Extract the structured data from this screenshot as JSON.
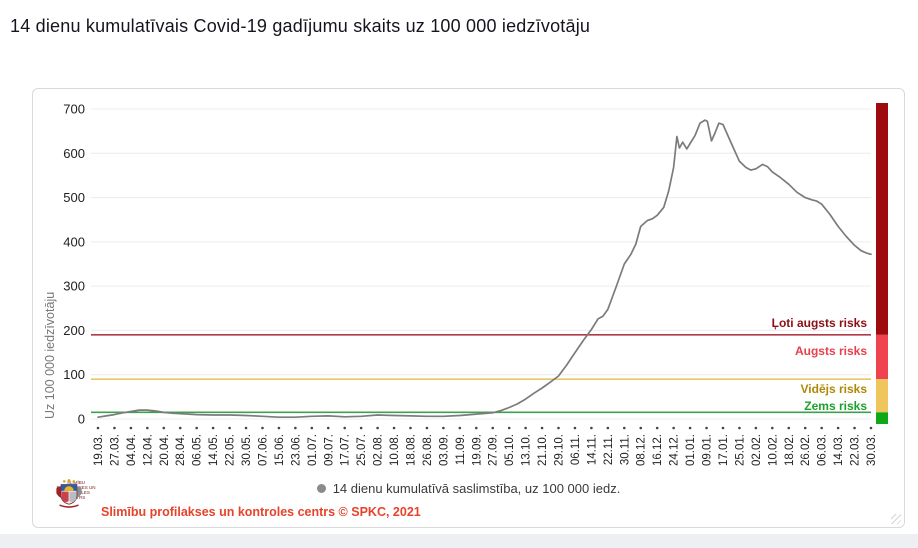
{
  "title": "14 dienu kumulatīvais Covid-19 gadījumu skaits uz 100 000 iedzīvotāju",
  "chart_data": {
    "type": "line",
    "title": "14 dienu kumulatīvais Covid-19 gadījumu skaits uz 100 000 iedzīvotāju",
    "ylabel": "Uz 100 000 iedzīvotāju",
    "ylim": [
      0,
      700
    ],
    "yticks": [
      0,
      100,
      200,
      300,
      400,
      500,
      600,
      700
    ],
    "grid": "horizontal",
    "x_tick_labels": [
      "19.03.",
      "27.03.",
      "04.04.",
      "12.04.",
      "20.04.",
      "28.04.",
      "06.05.",
      "14.05.",
      "22.05.",
      "30.05.",
      "07.06.",
      "15.06.",
      "23.06.",
      "01.07.",
      "09.07.",
      "17.07.",
      "25.07.",
      "02.08.",
      "10.08.",
      "18.08.",
      "26.08.",
      "03.09.",
      "11.09.",
      "19.09.",
      "27.09.",
      "05.10.",
      "13.10.",
      "21.10.",
      "29.10.",
      "06.11.",
      "14.11.",
      "22.11.",
      "30.11.",
      "08.12.",
      "16.12.",
      "24.12.",
      "01.01.",
      "09.01.",
      "17.01.",
      "25.01.",
      "02.02.",
      "10.02.",
      "18.02.",
      "26.02.",
      "06.03.",
      "14.03.",
      "22.03.",
      "30.03."
    ],
    "series": [
      {
        "name": "14 dienu kumulatīvā saslimstība, uz 100 000 iedz.",
        "color": "#7b7b7b",
        "points": [
          [
            0,
            4
          ],
          [
            0.5,
            7
          ],
          [
            1,
            10
          ],
          [
            1.5,
            14
          ],
          [
            2,
            17
          ],
          [
            2.5,
            20
          ],
          [
            3,
            20
          ],
          [
            3.5,
            18
          ],
          [
            4,
            15
          ],
          [
            4.5,
            13
          ],
          [
            5,
            12
          ],
          [
            5.5,
            11
          ],
          [
            6,
            10
          ],
          [
            7,
            9
          ],
          [
            8,
            9
          ],
          [
            9,
            8
          ],
          [
            10,
            6
          ],
          [
            11,
            4
          ],
          [
            12,
            4
          ],
          [
            13,
            6
          ],
          [
            14,
            7
          ],
          [
            15,
            5
          ],
          [
            16,
            6
          ],
          [
            17,
            9
          ],
          [
            18,
            8
          ],
          [
            19,
            7
          ],
          [
            20,
            6
          ],
          [
            21,
            6
          ],
          [
            22,
            8
          ],
          [
            23,
            11
          ],
          [
            24,
            14
          ],
          [
            24.5,
            19
          ],
          [
            25,
            26
          ],
          [
            25.5,
            34
          ],
          [
            26,
            45
          ],
          [
            26.5,
            58
          ],
          [
            27,
            70
          ],
          [
            27.5,
            83
          ],
          [
            28,
            97
          ],
          [
            28.5,
            122
          ],
          [
            29,
            150
          ],
          [
            29.5,
            177
          ],
          [
            30,
            202
          ],
          [
            30.4,
            226
          ],
          [
            30.7,
            232
          ],
          [
            31,
            248
          ],
          [
            31.5,
            298
          ],
          [
            32,
            350
          ],
          [
            32.4,
            372
          ],
          [
            32.7,
            395
          ],
          [
            33,
            435
          ],
          [
            33.4,
            448
          ],
          [
            33.7,
            452
          ],
          [
            34,
            460
          ],
          [
            34.4,
            478
          ],
          [
            34.7,
            515
          ],
          [
            35,
            568
          ],
          [
            35.2,
            638
          ],
          [
            35.35,
            612
          ],
          [
            35.55,
            625
          ],
          [
            35.8,
            610
          ],
          [
            36,
            622
          ],
          [
            36.3,
            640
          ],
          [
            36.6,
            668
          ],
          [
            36.9,
            675
          ],
          [
            37.05,
            672
          ],
          [
            37.3,
            628
          ],
          [
            37.5,
            645
          ],
          [
            37.75,
            668
          ],
          [
            38,
            665
          ],
          [
            38.3,
            640
          ],
          [
            38.6,
            615
          ],
          [
            39,
            582
          ],
          [
            39.4,
            568
          ],
          [
            39.7,
            562
          ],
          [
            40,
            565
          ],
          [
            40.4,
            575
          ],
          [
            40.7,
            570
          ],
          [
            41,
            558
          ],
          [
            41.5,
            545
          ],
          [
            42,
            530
          ],
          [
            42.5,
            512
          ],
          [
            43,
            500
          ],
          [
            43.4,
            495
          ],
          [
            43.7,
            492
          ],
          [
            44,
            485
          ],
          [
            44.5,
            462
          ],
          [
            45,
            435
          ],
          [
            45.5,
            412
          ],
          [
            46,
            392
          ],
          [
            46.4,
            380
          ],
          [
            46.7,
            375
          ],
          [
            47,
            372
          ]
        ]
      }
    ],
    "threshold_lines": [
      {
        "value": 190,
        "color": "#b03a48"
      },
      {
        "value": 90,
        "color": "#e9c863"
      },
      {
        "value": 15,
        "color": "#3fa04c"
      }
    ],
    "risk_levels": [
      {
        "label": "Ļoti augsts risks",
        "text_color": "#8c0f14",
        "bar_color": "#9e0b0f",
        "range": [
          190,
          700
        ]
      },
      {
        "label": "Augsts risks",
        "text_color": "#e5404b",
        "bar_color": "#ef4350",
        "range": [
          90,
          190
        ]
      },
      {
        "label": "Vidējs risks",
        "text_color": "#b08806",
        "bar_color": "#efc65e",
        "range": [
          15,
          90
        ]
      },
      {
        "label": "Zems risks",
        "text_color": "#1da02b",
        "bar_color": "#0fa918",
        "range": [
          0,
          15
        ]
      }
    ],
    "legend": {
      "marker_color": "#8a8a8a",
      "label": "14 dienu kumulatīvā saslimstība, uz 100 000 iedz."
    }
  },
  "footer": {
    "logo_caption": "SLIMĪBU PROFILAKSES UN KONTROLES CENTRS",
    "source_text": "Slimību profilakses un kontroles centrs © SPKC, 2021",
    "source_color": "#e8432a"
  }
}
